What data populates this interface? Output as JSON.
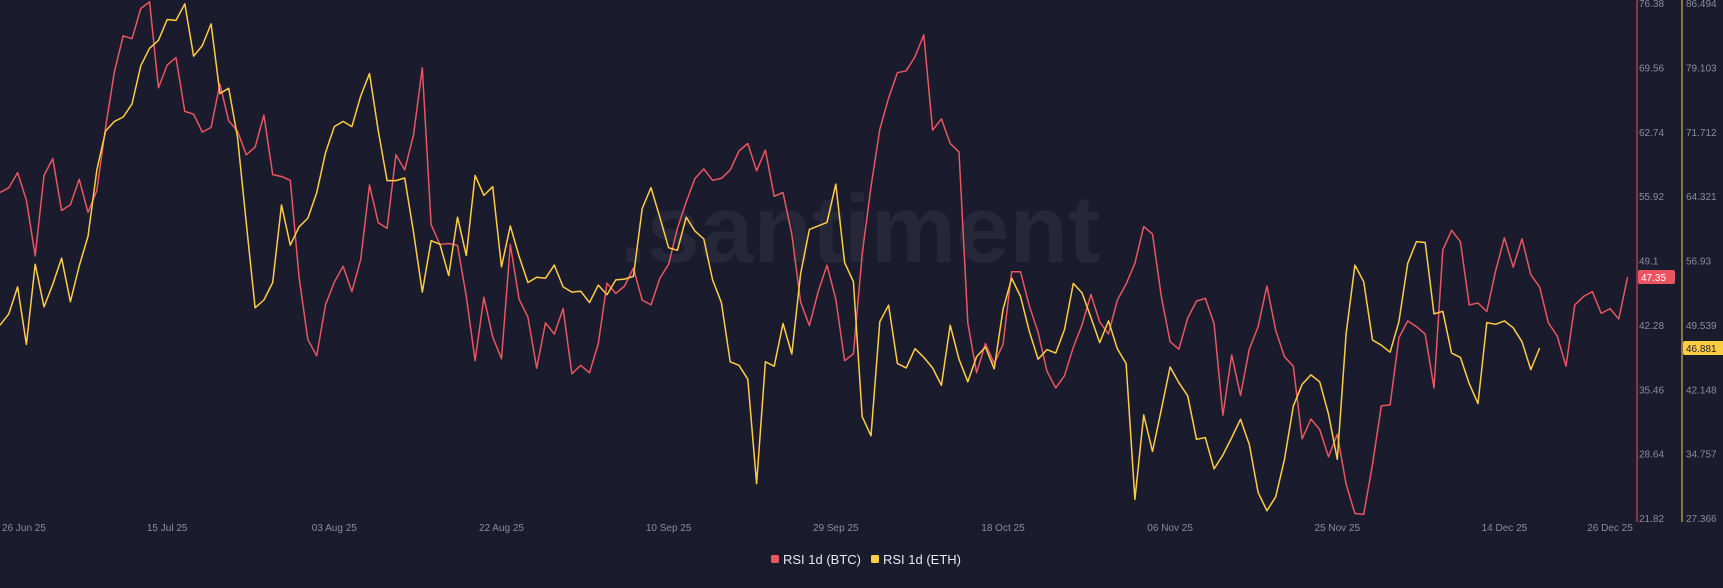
{
  "watermark": ".santiment",
  "colors": {
    "background": "#1a1b2c",
    "btc": "#ea5561",
    "eth": "#ffcd44",
    "tick": "#8a8d9c"
  },
  "chart_data": {
    "type": "line",
    "x_tick_labels": [
      "26 Jun 25",
      "15 Jul 25",
      "03 Aug 25",
      "22 Aug 25",
      "10 Sep 25",
      "29 Sep 25",
      "18 Oct 25",
      "06 Nov 25",
      "25 Nov 25",
      "14 Dec 25",
      "26 Dec 25"
    ],
    "x_tick_days": [
      0,
      19,
      38,
      57,
      76,
      95,
      114,
      133,
      152,
      171,
      183
    ],
    "x_range_days": [
      0,
      183
    ],
    "legend_position": "bottom-center",
    "grid": false,
    "y_axes": [
      {
        "name": "btc",
        "range": [
          21.82,
          76.38
        ],
        "ticks": [
          "76.38",
          "69.56",
          "62.74",
          "55.92",
          "49.1",
          "42.28",
          "35.46",
          "28.64",
          "21.82"
        ],
        "last_value_label": "47.35"
      },
      {
        "name": "eth",
        "range": [
          27.366,
          86.494
        ],
        "ticks": [
          "86.494",
          "79.103",
          "71.712",
          "64.321",
          "56.93",
          "49.539",
          "42.148",
          "34.757",
          "27.366"
        ],
        "last_value_label": "46.881"
      }
    ],
    "series": [
      {
        "name": "RSI 1d (BTC)",
        "axis": "btc",
        "color": "#ea5561",
        "values": [
          56.3,
          56.8,
          58.4,
          55.5,
          49.6,
          58.1,
          59.9,
          54.4,
          55.0,
          57.7,
          54.2,
          56.5,
          63.2,
          69.1,
          72.9,
          72.6,
          75.8,
          76.5,
          67.4,
          69.8,
          70.6,
          64.9,
          64.6,
          62.7,
          63.2,
          67.8,
          63.9,
          62.8,
          60.3,
          61.1,
          64.5,
          58.2,
          58.0,
          57.6,
          47.3,
          40.7,
          39.0,
          44.4,
          46.8,
          48.5,
          45.8,
          49.2,
          57.1,
          53.1,
          52.5,
          60.3,
          58.7,
          62.4,
          69.5,
          52.9,
          50.8,
          50.9,
          50.7,
          45.3,
          38.5,
          45.2,
          41.0,
          38.7,
          50.8,
          45.0,
          43.1,
          37.7,
          42.5,
          41.3,
          44.0,
          37.1,
          38.0,
          37.2,
          40.3,
          46.7,
          45.6,
          46.4,
          48.3,
          44.9,
          44.4,
          47.2,
          48.7,
          52.5,
          55.3,
          57.8,
          58.8,
          57.6,
          57.8,
          58.7,
          60.7,
          61.5,
          58.6,
          60.8,
          55.9,
          56.3,
          51.9,
          44.7,
          42.2,
          45.8,
          48.6,
          45.0,
          38.5,
          39.2,
          49.8,
          56.9,
          63.0,
          66.3,
          69.0,
          69.2,
          70.7,
          73.0,
          62.9,
          64.1,
          61.5,
          60.6,
          42.5,
          37.2,
          40.3,
          38.2,
          40.2,
          47.9,
          47.9,
          44.3,
          41.5,
          37.4,
          35.6,
          36.9,
          39.9,
          42.3,
          45.5,
          42.6,
          41.3,
          44.9,
          46.6,
          48.8,
          52.7,
          51.9,
          45.3,
          40.5,
          39.7,
          43.0,
          44.8,
          45.1,
          42.4,
          32.7,
          39.1,
          34.8,
          39.7,
          42.1,
          46.4,
          41.7,
          38.9,
          37.9,
          30.2,
          32.3,
          31.2,
          28.3,
          30.7,
          25.4,
          22.3,
          22.2,
          27.5,
          33.7,
          33.8,
          40.9,
          42.7,
          42.1,
          41.3,
          35.6,
          50.2,
          52.3,
          51.1,
          44.4,
          44.6,
          43.7,
          48.0,
          51.5,
          48.4,
          51.4,
          47.6,
          46.3,
          42.5,
          41.1,
          37.9,
          44.4,
          45.3,
          45.8,
          43.5,
          44.0,
          42.9,
          47.35
        ]
      },
      {
        "name": "RSI 1d (ETH)",
        "axis": "eth",
        "color": "#ffcd44",
        "values": [
          49.5,
          50.8,
          53.9,
          47.3,
          56.5,
          51.6,
          54.2,
          57.2,
          52.2,
          56.3,
          59.7,
          67.3,
          71.8,
          72.9,
          73.4,
          74.9,
          79.3,
          81.3,
          82.2,
          84.6,
          84.5,
          86.4,
          80.4,
          81.6,
          84.1,
          76.1,
          76.7,
          71.1,
          61.2,
          51.5,
          52.4,
          54.4,
          63.3,
          58.7,
          60.8,
          61.8,
          64.7,
          69.3,
          72.3,
          72.9,
          72.3,
          75.8,
          78.4,
          71.8,
          66.1,
          66.1,
          66.4,
          60.2,
          53.3,
          59.2,
          58.8,
          55.2,
          61.9,
          57.5,
          66.7,
          64.4,
          65.4,
          56.2,
          60.9,
          57.4,
          54.4,
          55.0,
          54.9,
          56.4,
          53.9,
          53.3,
          53.4,
          52.1,
          54.1,
          53.0,
          54.7,
          54.8,
          55.1,
          62.9,
          65.3,
          61.9,
          58.4,
          58.1,
          61.9,
          60.3,
          59.4,
          54.7,
          52.1,
          45.3,
          44.9,
          43.3,
          31.3,
          45.3,
          44.8,
          49.7,
          46.2,
          55.4,
          60.5,
          60.9,
          61.3,
          65.7,
          56.7,
          54.5,
          39.0,
          36.8,
          49.9,
          51.8,
          45.1,
          44.6,
          46.8,
          45.8,
          44.6,
          42.6,
          49.5,
          45.6,
          43.0,
          45.9,
          47.0,
          44.5,
          51.3,
          54.9,
          52.8,
          48.8,
          45.6,
          46.7,
          46.3,
          49.0,
          54.3,
          53.2,
          50.4,
          47.5,
          50.0,
          46.8,
          45.1,
          29.5,
          39.2,
          35.0,
          39.8,
          44.7,
          42.9,
          41.4,
          36.4,
          36.6,
          33.0,
          34.6,
          36.6,
          38.7,
          35.8,
          30.3,
          28.2,
          29.8,
          34.1,
          40.2,
          42.7,
          43.8,
          43.0,
          39.3,
          34.1,
          48.5,
          56.4,
          54.5,
          47.8,
          47.2,
          46.4,
          49.9,
          56.6,
          59.1,
          59.0,
          50.8,
          51.1,
          46.3,
          45.8,
          42.8,
          40.5,
          49.8,
          49.6,
          50.0,
          49.2,
          47.6,
          44.4,
          46.881
        ]
      }
    ]
  },
  "legend": [
    {
      "label": "RSI 1d (BTC)",
      "color": "#ea5561"
    },
    {
      "label": "RSI 1d (ETH)",
      "color": "#ffcd44"
    }
  ]
}
